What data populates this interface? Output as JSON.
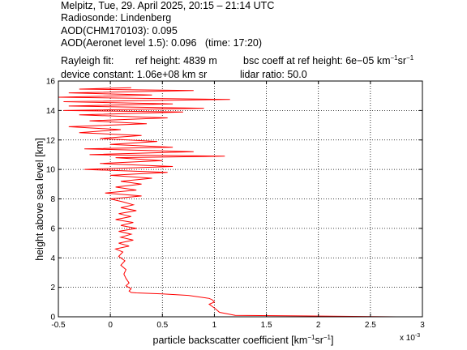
{
  "header": {
    "line1": "Melpitz, Tue, 29. April 2025, 20:15 – 21:14 UTC",
    "line2": "Radiosonde: Lindenberg",
    "line3": "AOD(CHM170103): 0.095",
    "line4": "AOD(Aeronet level 1.5): 0.096   (time: 17:20)",
    "rayleigh_label": "Rayleigh fit:",
    "ref_height": "ref height: 4839 m",
    "bsc_coeff_prefix": "bsc coeff at ref height: 6e−05 km",
    "bsc_coeff_sup1": "−1",
    "bsc_coeff_mid": "sr",
    "bsc_coeff_sup2": "−1",
    "device_constant": "device constant: 1.06e+08 km sr",
    "lidar_ratio": "lidar ratio: 50.0"
  },
  "chart_data": {
    "type": "line",
    "xlabel_prefix": "particle backscatter coefficient [km",
    "xlabel_sup1": "−1",
    "xlabel_mid": "sr",
    "xlabel_sup2": "−1",
    "xlabel_suffix": "]",
    "ylabel": "height above sea level [km]",
    "x_multiplier": "x 10",
    "x_multiplier_exp": "-3",
    "xlim": [
      -0.5,
      3
    ],
    "ylim": [
      0,
      16
    ],
    "xticks": [
      "-0.5",
      "0",
      "0.5",
      "1",
      "1.5",
      "2",
      "2.5",
      "3"
    ],
    "xtick_values": [
      -0.5,
      0,
      0.5,
      1,
      1.5,
      2,
      2.5,
      3
    ],
    "yticks": [
      "0",
      "2",
      "4",
      "6",
      "8",
      "10",
      "12",
      "14",
      "16"
    ],
    "ytick_values": [
      0,
      2,
      4,
      6,
      8,
      10,
      12,
      14,
      16
    ],
    "grid": true,
    "series": [
      {
        "color": "#ff0000",
        "points": [
          [
            2.75,
            0.0
          ],
          [
            1.2,
            0.1
          ],
          [
            1.05,
            0.3
          ],
          [
            1.0,
            0.6
          ],
          [
            0.95,
            0.85
          ],
          [
            1.0,
            1.0
          ],
          [
            0.98,
            1.15
          ],
          [
            0.95,
            1.25
          ],
          [
            0.75,
            1.45
          ],
          [
            0.5,
            1.55
          ],
          [
            0.25,
            1.62
          ],
          [
            0.2,
            1.65
          ],
          [
            0.18,
            1.75
          ],
          [
            0.2,
            1.9
          ],
          [
            0.15,
            2.1
          ],
          [
            0.18,
            2.3
          ],
          [
            0.15,
            2.6
          ],
          [
            0.13,
            2.9
          ],
          [
            0.15,
            3.2
          ],
          [
            0.1,
            3.5
          ],
          [
            0.14,
            3.8
          ],
          [
            0.08,
            4.1
          ],
          [
            0.12,
            4.4
          ],
          [
            0.05,
            4.6
          ],
          [
            0.18,
            4.8
          ],
          [
            0.08,
            5.0
          ],
          [
            0.22,
            5.2
          ],
          [
            0.1,
            5.4
          ],
          [
            0.2,
            5.6
          ],
          [
            0.08,
            5.8
          ],
          [
            0.25,
            6.0
          ],
          [
            0.1,
            6.2
          ],
          [
            0.22,
            6.4
          ],
          [
            0.05,
            6.6
          ],
          [
            0.2,
            6.8
          ],
          [
            0.08,
            7.0
          ],
          [
            0.25,
            7.2
          ],
          [
            0.1,
            7.4
          ],
          [
            0.22,
            7.6
          ],
          [
            0.12,
            7.8
          ],
          [
            0.0,
            8.0
          ],
          [
            0.3,
            8.2
          ],
          [
            -0.05,
            8.4
          ],
          [
            0.25,
            8.6
          ],
          [
            0.05,
            8.8
          ],
          [
            0.3,
            9.0
          ],
          [
            0.1,
            9.2
          ],
          [
            0.4,
            9.4
          ],
          [
            0.0,
            9.6
          ],
          [
            0.55,
            9.8
          ],
          [
            -0.25,
            10.0
          ],
          [
            0.6,
            10.2
          ],
          [
            -0.1,
            10.4
          ],
          [
            0.5,
            10.6
          ],
          [
            0.05,
            10.8
          ],
          [
            1.1,
            10.9
          ],
          [
            -0.2,
            11.0
          ],
          [
            0.8,
            11.2
          ],
          [
            -0.25,
            11.4
          ],
          [
            0.6,
            11.5
          ],
          [
            0.0,
            11.7
          ],
          [
            0.45,
            11.9
          ],
          [
            -0.1,
            12.1
          ],
          [
            0.3,
            12.3
          ],
          [
            -0.3,
            12.5
          ],
          [
            0.1,
            12.7
          ],
          [
            -0.4,
            12.9
          ],
          [
            0.35,
            13.1
          ],
          [
            -0.2,
            13.3
          ],
          [
            0.55,
            13.5
          ],
          [
            -0.3,
            13.7
          ],
          [
            0.7,
            13.9
          ],
          [
            -0.45,
            14.0
          ],
          [
            0.9,
            14.15
          ],
          [
            -0.4,
            14.3
          ],
          [
            0.6,
            14.45
          ],
          [
            -0.45,
            14.6
          ],
          [
            1.15,
            14.75
          ],
          [
            -0.5,
            14.9
          ],
          [
            0.4,
            15.05
          ],
          [
            -0.4,
            15.2
          ],
          [
            0.8,
            15.35
          ],
          [
            -0.3,
            15.45
          ],
          [
            0.2,
            15.55
          ]
        ]
      }
    ]
  }
}
